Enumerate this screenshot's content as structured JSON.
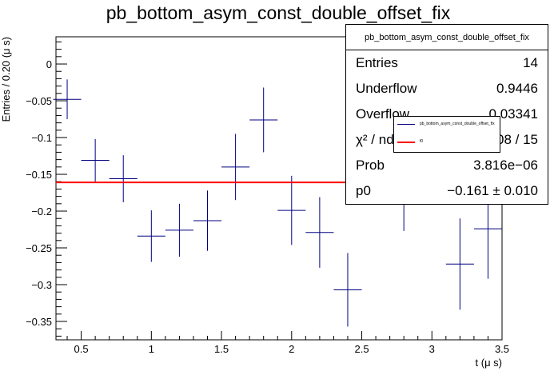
{
  "chart_data": {
    "type": "scatter",
    "title": "pb_bottom_asym_const_double_offset_fix",
    "xlabel": "t (μ s)",
    "ylabel": "Entries / 0.20 (μ s)",
    "xlim": [
      0.32,
      3.5
    ],
    "ylim": [
      -0.375,
      0.037
    ],
    "x_ticks": [
      0.5,
      1,
      1.5,
      2,
      2.5,
      3,
      3.5
    ],
    "x_tick_labels": [
      "0.5",
      "1",
      "1.5",
      "2",
      "2.5",
      "3",
      "3.5"
    ],
    "y_ticks": [
      0,
      -0.05,
      -0.1,
      -0.15,
      -0.2,
      -0.25,
      -0.3,
      -0.35
    ],
    "y_tick_labels": [
      "0",
      "−0.05",
      "−0.1",
      "−0.15",
      "−0.2",
      "−0.25",
      "−0.3",
      "−0.35"
    ],
    "series": [
      {
        "name": "pb_bottom_asym_const_double_offset_fix",
        "color": "#000080",
        "x_half_width": 0.1,
        "points": [
          {
            "x": 0.4,
            "y": -0.048,
            "err": 0.027
          },
          {
            "x": 0.6,
            "y": -0.131,
            "err": 0.029
          },
          {
            "x": 0.8,
            "y": -0.156,
            "err": 0.032
          },
          {
            "x": 1.0,
            "y": -0.234,
            "err": 0.035
          },
          {
            "x": 1.2,
            "y": -0.226,
            "err": 0.036
          },
          {
            "x": 1.4,
            "y": -0.213,
            "err": 0.041
          },
          {
            "x": 1.6,
            "y": -0.14,
            "err": 0.045
          },
          {
            "x": 1.8,
            "y": -0.076,
            "err": 0.044
          },
          {
            "x": 2.0,
            "y": -0.199,
            "err": 0.047
          },
          {
            "x": 2.2,
            "y": -0.229,
            "err": 0.048
          },
          {
            "x": 2.4,
            "y": -0.307,
            "err": 0.05
          },
          {
            "x": 2.8,
            "y": -0.17,
            "err": 0.057
          },
          {
            "x": 3.2,
            "y": -0.272,
            "err": 0.062
          },
          {
            "x": 3.4,
            "y": -0.224,
            "err": 0.068
          }
        ]
      },
      {
        "name": "f0",
        "type": "line",
        "color": "#ff0000",
        "y": -0.161
      }
    ],
    "grid": false,
    "legend_placement": "top-right"
  },
  "stats": {
    "title": "pb_bottom_asym_const_double_offset_fix",
    "rows": [
      {
        "label": "Entries",
        "value": "14"
      },
      {
        "label": "Underflow",
        "value": "0.9446"
      },
      {
        "label": "Overflow",
        "value": "0.03341"
      },
      {
        "label": "χ² / ndf",
        "value": "33.08 / 15"
      },
      {
        "label": "Prob",
        "value": "3.816e−06"
      },
      {
        "label": "p0",
        "value": "−0.161 ± 0.010"
      }
    ]
  },
  "legend": {
    "entries": [
      {
        "label": "pb_bottom_asym_const_double_offset_fix",
        "color": "#000080"
      },
      {
        "label": "f0",
        "color": "#ff0000"
      }
    ]
  }
}
